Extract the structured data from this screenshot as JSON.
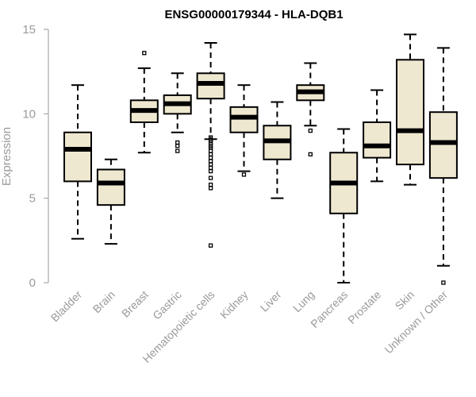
{
  "chart_data": {
    "type": "boxplot",
    "title": "ENSG00000179344 - HLA-DQB1",
    "xlabel": "",
    "ylabel": "Expression",
    "ylim": [
      0,
      15
    ],
    "yticks": [
      0,
      5,
      10,
      15
    ],
    "grid": false,
    "box_color": "#efe8d0",
    "categories": [
      "Bladder",
      "Brain",
      "Breast",
      "Gastric",
      "Hematopoietic cells",
      "Kidney",
      "Liver",
      "Lung",
      "Pancreas",
      "Prostate",
      "Skin",
      "Unknown / Other"
    ],
    "boxes": [
      {
        "whisker_low": 2.6,
        "q1": 6.0,
        "median": 7.9,
        "q3": 8.9,
        "whisker_high": 11.7,
        "outliers": []
      },
      {
        "whisker_low": 2.3,
        "q1": 4.6,
        "median": 5.9,
        "q3": 6.7,
        "whisker_high": 7.3,
        "outliers": []
      },
      {
        "whisker_low": 7.7,
        "q1": 9.5,
        "median": 10.2,
        "q3": 10.8,
        "whisker_high": 12.7,
        "outliers": [
          13.6
        ]
      },
      {
        "whisker_low": 8.9,
        "q1": 10.0,
        "median": 10.6,
        "q3": 11.1,
        "whisker_high": 12.4,
        "outliers": [
          8.3,
          8.1,
          7.8
        ]
      },
      {
        "whisker_low": 8.5,
        "q1": 10.9,
        "median": 11.8,
        "q3": 12.4,
        "whisker_high": 14.2,
        "outliers": [
          8.6,
          8.4,
          8.3,
          8.1,
          8.0,
          7.8,
          7.6,
          7.4,
          7.2,
          7.0,
          6.8,
          6.6,
          6.2,
          5.8,
          5.6,
          2.2
        ]
      },
      {
        "whisker_low": 6.6,
        "q1": 8.9,
        "median": 9.8,
        "q3": 10.4,
        "whisker_high": 11.7,
        "outliers": [
          6.4
        ]
      },
      {
        "whisker_low": 5.0,
        "q1": 7.3,
        "median": 8.4,
        "q3": 9.3,
        "whisker_high": 10.7,
        "outliers": []
      },
      {
        "whisker_low": 9.3,
        "q1": 10.8,
        "median": 11.3,
        "q3": 11.7,
        "whisker_high": 13.0,
        "outliers": [
          9.0,
          7.6
        ]
      },
      {
        "whisker_low": 0.0,
        "q1": 4.1,
        "median": 5.9,
        "q3": 7.7,
        "whisker_high": 9.1,
        "outliers": []
      },
      {
        "whisker_low": 6.0,
        "q1": 7.4,
        "median": 8.1,
        "q3": 9.5,
        "whisker_high": 11.4,
        "outliers": []
      },
      {
        "whisker_low": 5.8,
        "q1": 7.0,
        "median": 9.0,
        "q3": 13.2,
        "whisker_high": 14.7,
        "outliers": []
      },
      {
        "whisker_low": 1.0,
        "q1": 6.2,
        "median": 8.3,
        "q3": 10.1,
        "whisker_high": 13.9,
        "outliers": [
          0.0
        ]
      }
    ]
  }
}
